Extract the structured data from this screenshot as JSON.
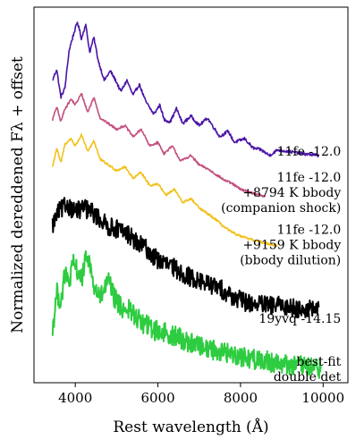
{
  "chart_data": {
    "type": "line",
    "xlabel": "Rest wavelength (Å)",
    "ylabel": "Normalized dereddened Fλ + offset",
    "xlim": [
      3000,
      10600
    ],
    "ylim": [
      0,
      10
    ],
    "xticks": [
      4000,
      6000,
      8000,
      10000
    ],
    "xtick_labels": [
      "4000",
      "6000",
      "8000",
      "10000"
    ],
    "yticks_shown": false,
    "grid": false,
    "legend": "none",
    "series": [
      {
        "color": "#4a14a6",
        "noise": 0.04,
        "label_lines": [
          "11fe -12.0"
        ],
        "points": [
          [
            3450,
            8.05
          ],
          [
            3550,
            8.35
          ],
          [
            3650,
            7.6
          ],
          [
            3750,
            7.85
          ],
          [
            3850,
            8.85
          ],
          [
            3950,
            9.25
          ],
          [
            4050,
            9.6
          ],
          [
            4100,
            9.4
          ],
          [
            4150,
            9.15
          ],
          [
            4250,
            9.55
          ],
          [
            4350,
            8.8
          ],
          [
            4450,
            9.2
          ],
          [
            4550,
            8.6
          ],
          [
            4700,
            8.05
          ],
          [
            4850,
            8.3
          ],
          [
            5000,
            8.0
          ],
          [
            5100,
            7.75
          ],
          [
            5250,
            8.05
          ],
          [
            5400,
            7.65
          ],
          [
            5550,
            7.95
          ],
          [
            5700,
            7.5
          ],
          [
            5900,
            7.15
          ],
          [
            6050,
            7.4
          ],
          [
            6150,
            7.0
          ],
          [
            6300,
            6.95
          ],
          [
            6450,
            7.3
          ],
          [
            6600,
            6.9
          ],
          [
            6800,
            7.1
          ],
          [
            7000,
            6.85
          ],
          [
            7200,
            7.05
          ],
          [
            7500,
            6.55
          ],
          [
            7700,
            6.7
          ],
          [
            7850,
            6.4
          ],
          [
            8100,
            6.5
          ],
          [
            8300,
            6.25
          ],
          [
            8500,
            6.2
          ],
          [
            8700,
            6.05
          ],
          [
            8900,
            6.2
          ],
          [
            9200,
            6.15
          ],
          [
            9500,
            6.1
          ],
          [
            9900,
            6.05
          ]
        ]
      },
      {
        "color": "#c24f7f",
        "noise": 0.03,
        "label_lines": [
          "11fe -12.0",
          "+8794 K bbody",
          "(companion shock)"
        ],
        "points": [
          [
            3450,
            7.0
          ],
          [
            3550,
            7.35
          ],
          [
            3650,
            6.95
          ],
          [
            3750,
            7.3
          ],
          [
            3900,
            7.55
          ],
          [
            4000,
            7.4
          ],
          [
            4150,
            7.7
          ],
          [
            4300,
            7.2
          ],
          [
            4450,
            7.6
          ],
          [
            4600,
            7.05
          ],
          [
            4800,
            6.9
          ],
          [
            5000,
            6.75
          ],
          [
            5200,
            6.85
          ],
          [
            5400,
            6.55
          ],
          [
            5600,
            6.75
          ],
          [
            5800,
            6.3
          ],
          [
            6000,
            6.4
          ],
          [
            6150,
            6.1
          ],
          [
            6350,
            6.3
          ],
          [
            6550,
            5.9
          ],
          [
            6800,
            6.05
          ],
          [
            7000,
            5.8
          ],
          [
            7200,
            5.7
          ],
          [
            7400,
            5.55
          ],
          [
            7600,
            5.4
          ],
          [
            7800,
            5.3
          ],
          [
            8000,
            5.15
          ],
          [
            8300,
            5.05
          ],
          [
            8600,
            4.95
          ]
        ]
      },
      {
        "color": "#f2c11c",
        "noise": 0.03,
        "label_lines": [
          "11fe -12.0",
          "+9159 K bbody",
          "(bbody dilution)"
        ],
        "points": [
          [
            3450,
            5.75
          ],
          [
            3550,
            6.25
          ],
          [
            3650,
            5.85
          ],
          [
            3750,
            6.35
          ],
          [
            3900,
            6.5
          ],
          [
            4000,
            6.3
          ],
          [
            4150,
            6.6
          ],
          [
            4300,
            6.15
          ],
          [
            4450,
            6.45
          ],
          [
            4600,
            5.95
          ],
          [
            4800,
            5.8
          ],
          [
            5000,
            5.65
          ],
          [
            5200,
            5.75
          ],
          [
            5400,
            5.45
          ],
          [
            5600,
            5.6
          ],
          [
            5800,
            5.25
          ],
          [
            6000,
            5.3
          ],
          [
            6200,
            5.0
          ],
          [
            6400,
            5.15
          ],
          [
            6600,
            4.8
          ],
          [
            6800,
            4.9
          ],
          [
            7000,
            4.65
          ],
          [
            7200,
            4.5
          ],
          [
            7400,
            4.35
          ],
          [
            7600,
            4.15
          ],
          [
            7800,
            4.0
          ],
          [
            8000,
            3.9
          ],
          [
            8300,
            3.8
          ],
          [
            8600,
            3.72
          ],
          [
            8900,
            3.65
          ]
        ]
      },
      {
        "color": "#000000",
        "noise": 0.25,
        "label_lines": [
          "19yvq -14.15"
        ],
        "points": [
          [
            3450,
            4.2
          ],
          [
            3600,
            4.55
          ],
          [
            3800,
            4.75
          ],
          [
            4000,
            4.55
          ],
          [
            4200,
            4.65
          ],
          [
            4400,
            4.55
          ],
          [
            4600,
            4.35
          ],
          [
            4800,
            4.15
          ],
          [
            5000,
            4.1
          ],
          [
            5300,
            3.95
          ],
          [
            5500,
            3.7
          ],
          [
            5700,
            3.6
          ],
          [
            5900,
            3.35
          ],
          [
            6100,
            3.2
          ],
          [
            6400,
            3.05
          ],
          [
            6700,
            2.85
          ],
          [
            7000,
            2.7
          ],
          [
            7300,
            2.6
          ],
          [
            7600,
            2.45
          ],
          [
            7800,
            2.3
          ],
          [
            8100,
            2.15
          ],
          [
            8400,
            2.1
          ],
          [
            8700,
            2.05
          ],
          [
            9000,
            2.05
          ],
          [
            9300,
            2.0
          ],
          [
            9600,
            1.95
          ],
          [
            9900,
            1.95
          ]
        ]
      },
      {
        "color": "#2ecc40",
        "noise": 0.28,
        "label_lines": [
          "best-fit",
          "double det"
        ],
        "points": [
          [
            3450,
            1.4
          ],
          [
            3550,
            2.4
          ],
          [
            3650,
            2.15
          ],
          [
            3750,
            2.9
          ],
          [
            3850,
            2.65
          ],
          [
            3950,
            3.15
          ],
          [
            4050,
            3.0
          ],
          [
            4150,
            2.75
          ],
          [
            4300,
            3.45
          ],
          [
            4450,
            2.55
          ],
          [
            4600,
            2.25
          ],
          [
            4800,
            2.7
          ],
          [
            4950,
            2.25
          ],
          [
            5100,
            2.0
          ],
          [
            5300,
            1.95
          ],
          [
            5500,
            1.7
          ],
          [
            5700,
            1.55
          ],
          [
            5900,
            1.4
          ],
          [
            6100,
            1.35
          ],
          [
            6400,
            1.25
          ],
          [
            6700,
            1.1
          ],
          [
            7000,
            1.0
          ],
          [
            7300,
            0.9
          ],
          [
            7600,
            0.8
          ],
          [
            7900,
            0.75
          ],
          [
            8200,
            0.65
          ],
          [
            8500,
            0.6
          ],
          [
            8800,
            0.55
          ],
          [
            9100,
            0.5
          ],
          [
            9400,
            0.45
          ],
          [
            9700,
            0.4
          ],
          [
            9950,
            0.4
          ]
        ]
      }
    ]
  }
}
